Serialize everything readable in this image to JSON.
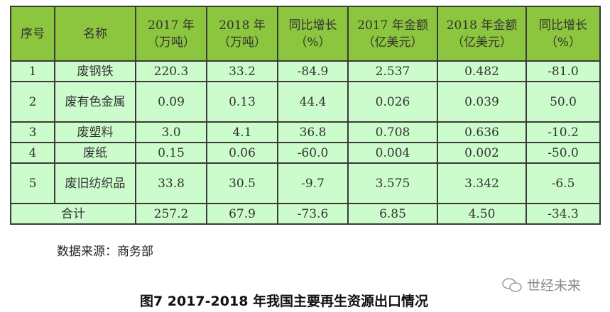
{
  "table": {
    "headers": [
      "序号",
      "名称",
      "2017 年（万吨）",
      "2018 年（万吨）",
      "同比增长（%）",
      "2017 年金额（亿美元）",
      "2018 年金额（亿美元）",
      "同比增长（%）"
    ],
    "rows": [
      [
        "1",
        "废钢铁",
        "220.3",
        "33.2",
        "-84.9",
        "2.537",
        "0.482",
        "-81.0"
      ],
      [
        "2",
        "废有色金属",
        "0.09",
        "0.13",
        "44.4",
        "0.026",
        "0.039",
        "50.0"
      ],
      [
        "3",
        "废塑料",
        "3.0",
        "4.1",
        "36.8",
        "0.708",
        "0.636",
        "-10.2"
      ],
      [
        "4",
        "废纸",
        "0.15",
        "0.06",
        "-60.0",
        "0.004",
        "0.002",
        "-50.0"
      ],
      [
        "5",
        "废旧纺织品",
        "33.8",
        "30.5",
        "-9.7",
        "3.575",
        "3.342",
        "-6.5"
      ]
    ],
    "total": [
      "合计",
      "257.2",
      "67.9",
      "-73.6",
      "6.85",
      "4.50",
      "-34.3"
    ]
  },
  "source": "数据来源：商务部",
  "caption": "图7 2017-2018 年我国主要再生资源出口情况",
  "watermark": "世经未来",
  "colors": {
    "header": "#8cc63e",
    "body": "#ccfccc"
  }
}
